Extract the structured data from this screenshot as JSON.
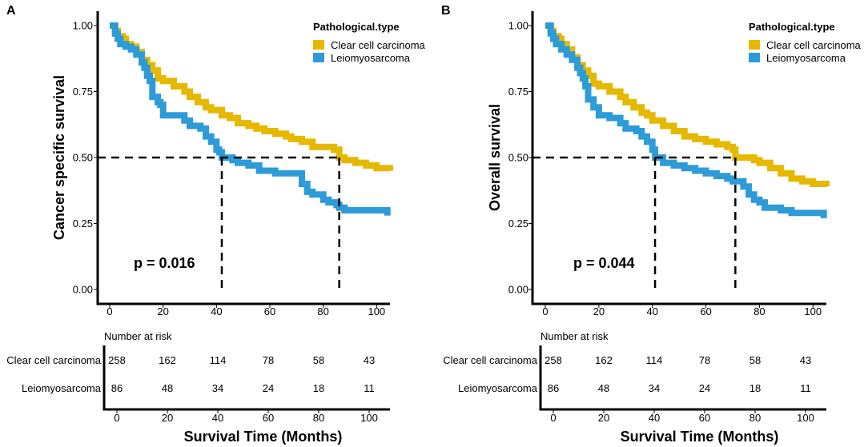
{
  "colors": {
    "clear_cell": "#E6B800",
    "leiomyosarcoma": "#2E9BD9"
  },
  "chart_data": [
    {
      "type": "line",
      "subtype": "kaplan-meier",
      "panel": "A",
      "ylabel": "Cancer specific survival",
      "xlabel": "Survival Time (Months)",
      "xlim": [
        0,
        105
      ],
      "ylim": [
        0,
        1
      ],
      "yticks": [
        "0.00",
        "0.25",
        "0.50",
        "0.75",
        "1.00"
      ],
      "xticks": [
        "0",
        "20",
        "40",
        "60",
        "80",
        "100"
      ],
      "legend_title": "Pathological.type",
      "p_value": "p = 0.016",
      "series": [
        {
          "name": "Clear cell carcinoma",
          "color": "#E6B800",
          "median": 86,
          "x": [
            0,
            2,
            3,
            5,
            6,
            8,
            10,
            12,
            14,
            16,
            18,
            20,
            24,
            28,
            30,
            33,
            36,
            38,
            42,
            45,
            48,
            52,
            55,
            58,
            62,
            66,
            68,
            72,
            76,
            80,
            84,
            86,
            88,
            92,
            96,
            100,
            105
          ],
          "y": [
            1.0,
            0.98,
            0.96,
            0.95,
            0.93,
            0.92,
            0.9,
            0.87,
            0.85,
            0.83,
            0.8,
            0.79,
            0.77,
            0.75,
            0.73,
            0.71,
            0.69,
            0.68,
            0.66,
            0.65,
            0.63,
            0.62,
            0.61,
            0.6,
            0.59,
            0.58,
            0.57,
            0.56,
            0.54,
            0.54,
            0.53,
            0.5,
            0.49,
            0.48,
            0.47,
            0.46,
            0.45
          ]
        },
        {
          "name": "Leiomyosarcoma",
          "color": "#2E9BD9",
          "median": 42,
          "x": [
            0,
            2,
            3,
            4,
            6,
            8,
            10,
            12,
            13,
            14,
            15,
            16,
            18,
            19,
            20,
            24,
            28,
            30,
            34,
            36,
            38,
            40,
            41,
            42,
            44,
            46,
            48,
            52,
            56,
            62,
            70,
            72,
            74,
            76,
            78,
            80,
            82,
            85,
            86,
            88,
            92,
            96,
            100,
            104
          ],
          "y": [
            1.0,
            0.97,
            0.95,
            0.93,
            0.92,
            0.91,
            0.89,
            0.86,
            0.84,
            0.81,
            0.79,
            0.73,
            0.71,
            0.7,
            0.66,
            0.66,
            0.64,
            0.62,
            0.61,
            0.58,
            0.56,
            0.53,
            0.52,
            0.5,
            0.5,
            0.49,
            0.48,
            0.47,
            0.45,
            0.44,
            0.44,
            0.4,
            0.37,
            0.36,
            0.36,
            0.34,
            0.33,
            0.32,
            0.31,
            0.3,
            0.3,
            0.3,
            0.3,
            0.28
          ]
        }
      ],
      "risk_table": {
        "title": "Number at risk",
        "times": [
          "0",
          "20",
          "40",
          "60",
          "80",
          "100"
        ],
        "rows": [
          {
            "label": "Clear cell carcinoma",
            "values": [
              "258",
              "162",
              "114",
              "78",
              "58",
              "43"
            ]
          },
          {
            "label": "Leiomyosarcoma",
            "values": [
              "86",
              "48",
              "34",
              "24",
              "18",
              "11"
            ]
          }
        ],
        "xlabel": "Survival Time (Months)"
      }
    },
    {
      "type": "line",
      "subtype": "kaplan-meier",
      "panel": "B",
      "ylabel": "Overall survival",
      "xlabel": "Survival Time (Months)",
      "xlim": [
        0,
        105
      ],
      "ylim": [
        0,
        1
      ],
      "yticks": [
        "0.00",
        "0.25",
        "0.50",
        "0.75",
        "1.00"
      ],
      "xticks": [
        "0",
        "20",
        "40",
        "60",
        "80",
        "100"
      ],
      "legend_title": "Pathological.type",
      "p_value": "p = 0.044",
      "series": [
        {
          "name": "Clear cell carcinoma",
          "color": "#E6B800",
          "median": 71,
          "x": [
            0,
            2,
            3,
            5,
            6,
            8,
            10,
            12,
            14,
            16,
            18,
            20,
            24,
            28,
            30,
            33,
            36,
            38,
            40,
            44,
            48,
            52,
            56,
            60,
            64,
            68,
            70,
            71,
            74,
            78,
            80,
            84,
            88,
            92,
            96,
            100,
            105
          ],
          "y": [
            1.0,
            0.98,
            0.96,
            0.95,
            0.93,
            0.91,
            0.88,
            0.85,
            0.83,
            0.81,
            0.78,
            0.77,
            0.75,
            0.73,
            0.71,
            0.69,
            0.67,
            0.66,
            0.64,
            0.62,
            0.6,
            0.58,
            0.57,
            0.56,
            0.55,
            0.54,
            0.53,
            0.5,
            0.5,
            0.49,
            0.48,
            0.46,
            0.44,
            0.42,
            0.41,
            0.4,
            0.39
          ]
        },
        {
          "name": "Leiomyosarcoma",
          "color": "#2E9BD9",
          "median": 41,
          "x": [
            0,
            2,
            3,
            4,
            6,
            8,
            10,
            12,
            13,
            14,
            15,
            16,
            18,
            20,
            24,
            28,
            30,
            34,
            36,
            38,
            40,
            41,
            44,
            48,
            52,
            56,
            60,
            64,
            68,
            70,
            72,
            74,
            76,
            78,
            80,
            82,
            84,
            88,
            92,
            96,
            100,
            104
          ],
          "y": [
            1.0,
            0.97,
            0.95,
            0.93,
            0.91,
            0.89,
            0.87,
            0.84,
            0.82,
            0.8,
            0.77,
            0.72,
            0.69,
            0.66,
            0.65,
            0.63,
            0.61,
            0.6,
            0.58,
            0.56,
            0.53,
            0.5,
            0.48,
            0.47,
            0.46,
            0.45,
            0.44,
            0.43,
            0.42,
            0.41,
            0.41,
            0.39,
            0.36,
            0.34,
            0.33,
            0.31,
            0.31,
            0.3,
            0.29,
            0.29,
            0.29,
            0.27
          ]
        }
      ],
      "risk_table": {
        "title": "Number at risk",
        "times": [
          "0",
          "20",
          "40",
          "60",
          "80",
          "100"
        ],
        "rows": [
          {
            "label": "Clear cell carcinoma",
            "values": [
              "258",
              "162",
              "114",
              "78",
              "58",
              "43"
            ]
          },
          {
            "label": "Leiomyosarcoma",
            "values": [
              "86",
              "48",
              "34",
              "24",
              "18",
              "11"
            ]
          }
        ],
        "xlabel": "Survival Time (Months)"
      }
    }
  ]
}
